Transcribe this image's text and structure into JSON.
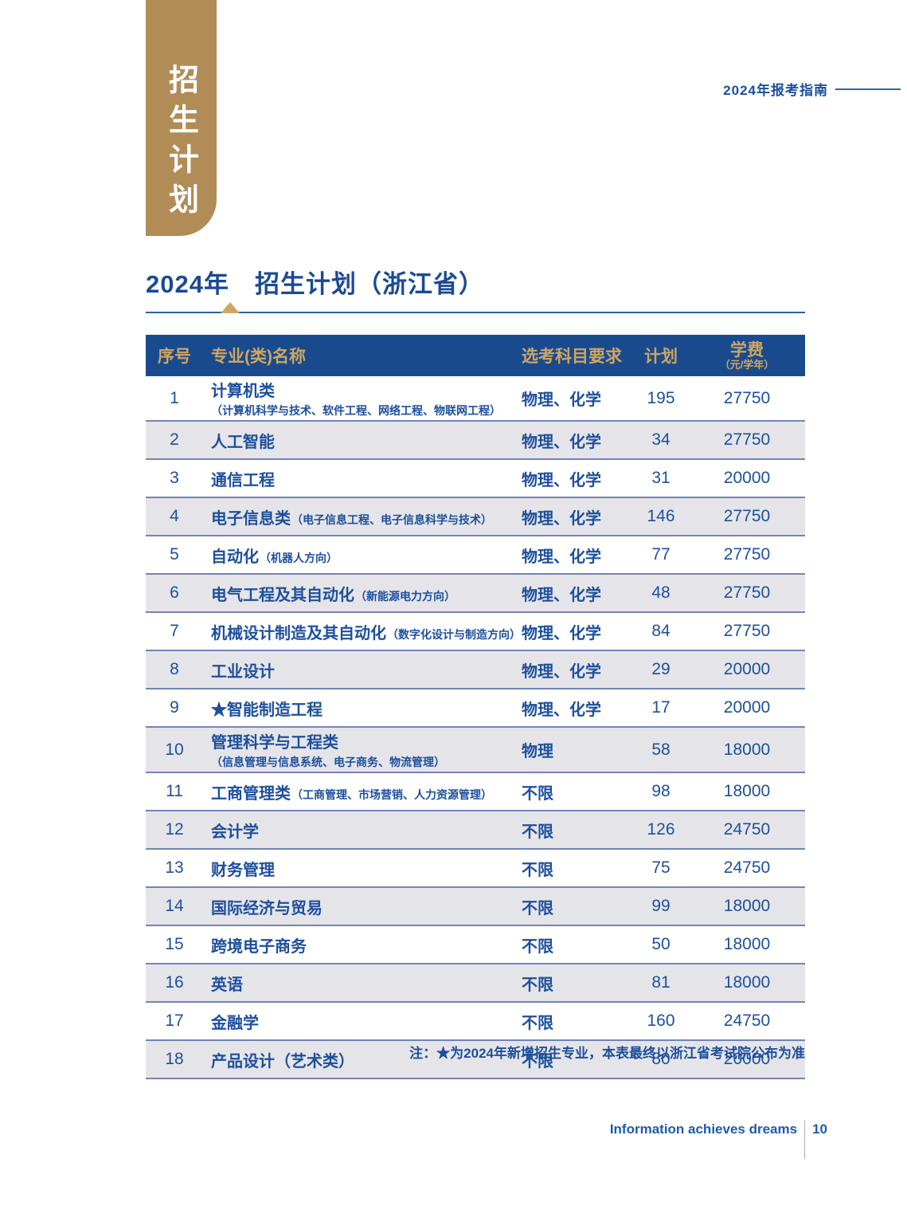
{
  "banner": {
    "vertical_title": "招生计划"
  },
  "header": {
    "guide_label": "2024年报考指南"
  },
  "title": {
    "text": "2024年　招生计划（浙江省）"
  },
  "table": {
    "columns": {
      "no": "序号",
      "major": "专业(类)名称",
      "subjects": "选考科目要求",
      "plan": "计划",
      "tuition": "学费",
      "tuition_unit": "（元/学年）"
    },
    "rows": [
      {
        "no": "1",
        "major": "计算机类",
        "sub": "（计算机科学与技术、软件工程、网络工程、物联网工程）",
        "sub_layout": "block",
        "subjects": "物理、化学",
        "plan": "195",
        "tuition": "27750"
      },
      {
        "no": "2",
        "major": "人工智能",
        "subjects": "物理、化学",
        "plan": "34",
        "tuition": "27750"
      },
      {
        "no": "3",
        "major": "通信工程",
        "subjects": "物理、化学",
        "plan": "31",
        "tuition": "20000"
      },
      {
        "no": "4",
        "major": "电子信息类",
        "sub": "（电子信息工程、电子信息科学与技术）",
        "sub_layout": "inline",
        "subjects": "物理、化学",
        "plan": "146",
        "tuition": "27750"
      },
      {
        "no": "5",
        "major": "自动化",
        "sub": "（机器人方向）",
        "sub_layout": "inline",
        "subjects": "物理、化学",
        "plan": "77",
        "tuition": "27750"
      },
      {
        "no": "6",
        "major": "电气工程及其自动化",
        "sub": "（新能源电力方向）",
        "sub_layout": "inline",
        "subjects": "物理、化学",
        "plan": "48",
        "tuition": "27750"
      },
      {
        "no": "7",
        "major": "机械设计制造及其自动化",
        "sub": "（数字化设计与制造方向）",
        "sub_layout": "inline",
        "subjects": "物理、化学",
        "plan": "84",
        "tuition": "27750"
      },
      {
        "no": "8",
        "major": "工业设计",
        "subjects": "物理、化学",
        "plan": "29",
        "tuition": "20000"
      },
      {
        "no": "9",
        "major": "★智能制造工程",
        "subjects": "物理、化学",
        "plan": "17",
        "tuition": "20000"
      },
      {
        "no": "10",
        "major": "管理科学与工程类",
        "sub": "（信息管理与信息系统、电子商务、物流管理）",
        "sub_layout": "block",
        "subjects": "物理",
        "plan": "58",
        "tuition": "18000"
      },
      {
        "no": "11",
        "major": "工商管理类",
        "sub": "（工商管理、市场营销、人力资源管理）",
        "sub_layout": "inline",
        "subjects": "不限",
        "plan": "98",
        "tuition": "18000"
      },
      {
        "no": "12",
        "major": "会计学",
        "subjects": "不限",
        "plan": "126",
        "tuition": "24750"
      },
      {
        "no": "13",
        "major": "财务管理",
        "subjects": "不限",
        "plan": "75",
        "tuition": "24750"
      },
      {
        "no": "14",
        "major": "国际经济与贸易",
        "subjects": "不限",
        "plan": "99",
        "tuition": "18000"
      },
      {
        "no": "15",
        "major": "跨境电子商务",
        "subjects": "不限",
        "plan": "50",
        "tuition": "18000"
      },
      {
        "no": "16",
        "major": "英语",
        "subjects": "不限",
        "plan": "81",
        "tuition": "18000"
      },
      {
        "no": "17",
        "major": "金融学",
        "subjects": "不限",
        "plan": "160",
        "tuition": "24750"
      },
      {
        "no": "18",
        "major": "产品设计（艺术类）",
        "subjects": "不限",
        "plan": "80",
        "tuition": "20000"
      }
    ]
  },
  "note": "注：★为2024年新增招生专业，本表最终以浙江省考试院公布为准",
  "footer": {
    "slogan": "Information achieves dreams",
    "page_number": "10"
  },
  "colors": {
    "banner_gold": "#b28c56",
    "header_bar_blue": "#1a4a8e",
    "header_gold_text": "#cfa660",
    "body_text_blue": "#1d4f9c",
    "alt_row_grey": "#e5e5e9",
    "row_separator_blue": "#7384b4",
    "triangle_gold": "#cfa763"
  }
}
